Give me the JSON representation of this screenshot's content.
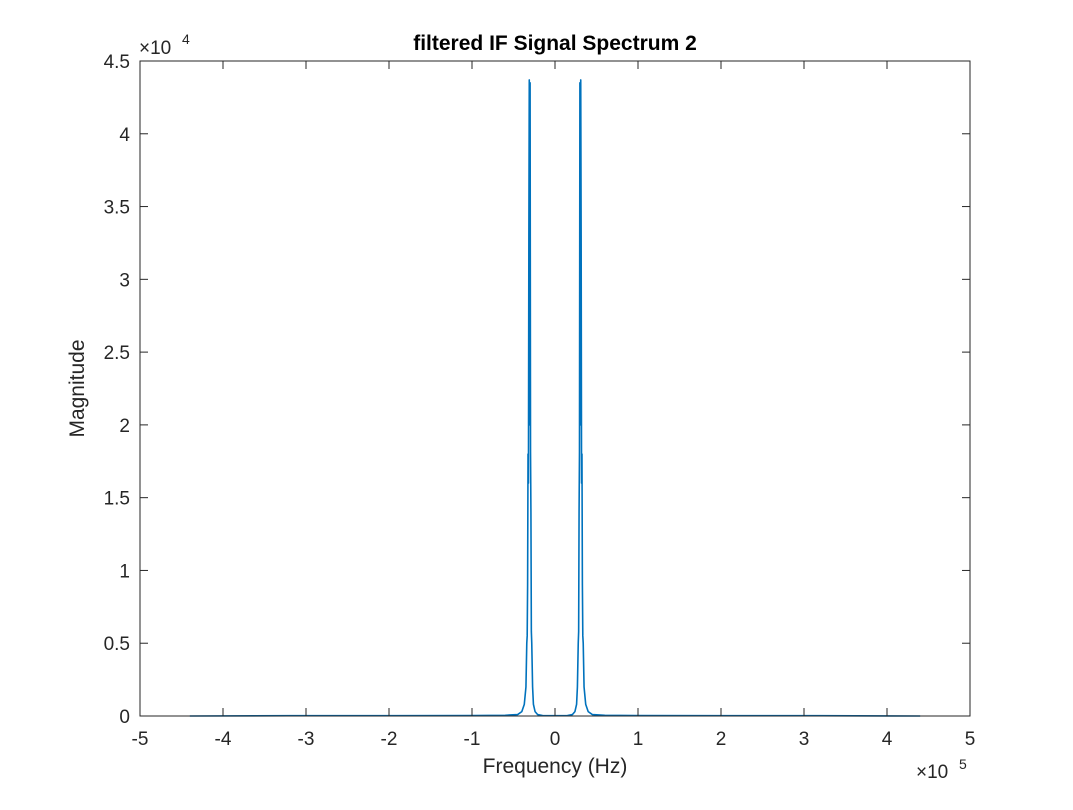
{
  "chart_data": {
    "type": "line",
    "title": "filtered IF Signal Spectrum 2",
    "xlabel": "Frequency (Hz)",
    "ylabel": "Magnitude",
    "xlim": [
      -5,
      5
    ],
    "ylim": [
      0,
      4.5
    ],
    "x_multiplier": {
      "prefix": "×10",
      "exponent": "5"
    },
    "y_multiplier": {
      "prefix": "×10",
      "exponent": "4"
    },
    "x_ticks": [
      "-5",
      "-4",
      "-3",
      "-2",
      "-1",
      "0",
      "1",
      "2",
      "3",
      "4",
      "5"
    ],
    "y_ticks": [
      "0",
      "0.5",
      "1",
      "1.5",
      "2",
      "2.5",
      "3",
      "3.5",
      "4",
      "4.5"
    ],
    "grid": false,
    "color": "#0072BD",
    "series": [
      {
        "points": [
          [
            -4.4,
            0.0
          ],
          [
            -3.2,
            0.002
          ],
          [
            -2.0,
            0.002
          ],
          [
            -1.0,
            0.003
          ],
          [
            -0.6,
            0.005
          ],
          [
            -0.45,
            0.01
          ],
          [
            -0.4,
            0.03
          ],
          [
            -0.37,
            0.08
          ],
          [
            -0.35,
            0.2
          ],
          [
            -0.34,
            0.5
          ],
          [
            -0.335,
            0.55
          ],
          [
            -0.33,
            0.9
          ],
          [
            -0.325,
            1.8
          ],
          [
            -0.32,
            1.6
          ],
          [
            -0.315,
            3.3
          ],
          [
            -0.31,
            4.37
          ],
          [
            -0.305,
            2.0
          ],
          [
            -0.3,
            4.35
          ],
          [
            -0.295,
            1.82
          ],
          [
            -0.29,
            1.4
          ],
          [
            -0.285,
            0.58
          ],
          [
            -0.28,
            0.5
          ],
          [
            -0.27,
            0.2
          ],
          [
            -0.26,
            0.08
          ],
          [
            -0.24,
            0.03
          ],
          [
            -0.21,
            0.01
          ],
          [
            -0.15,
            0.003
          ],
          [
            -0.05,
            0.002
          ],
          [
            0.0,
            0.002
          ],
          [
            0.05,
            0.002
          ],
          [
            0.15,
            0.003
          ],
          [
            0.21,
            0.01
          ],
          [
            0.24,
            0.03
          ],
          [
            0.26,
            0.08
          ],
          [
            0.27,
            0.2
          ],
          [
            0.28,
            0.5
          ],
          [
            0.285,
            0.58
          ],
          [
            0.29,
            1.4
          ],
          [
            0.295,
            1.82
          ],
          [
            0.3,
            4.35
          ],
          [
            0.305,
            2.0
          ],
          [
            0.31,
            4.37
          ],
          [
            0.315,
            3.3
          ],
          [
            0.32,
            1.6
          ],
          [
            0.325,
            1.8
          ],
          [
            0.33,
            0.9
          ],
          [
            0.335,
            0.55
          ],
          [
            0.34,
            0.5
          ],
          [
            0.35,
            0.2
          ],
          [
            0.37,
            0.08
          ],
          [
            0.4,
            0.03
          ],
          [
            0.45,
            0.01
          ],
          [
            0.6,
            0.005
          ],
          [
            1.0,
            0.003
          ],
          [
            2.0,
            0.002
          ],
          [
            3.2,
            0.002
          ],
          [
            4.4,
            0.0
          ]
        ]
      }
    ]
  }
}
